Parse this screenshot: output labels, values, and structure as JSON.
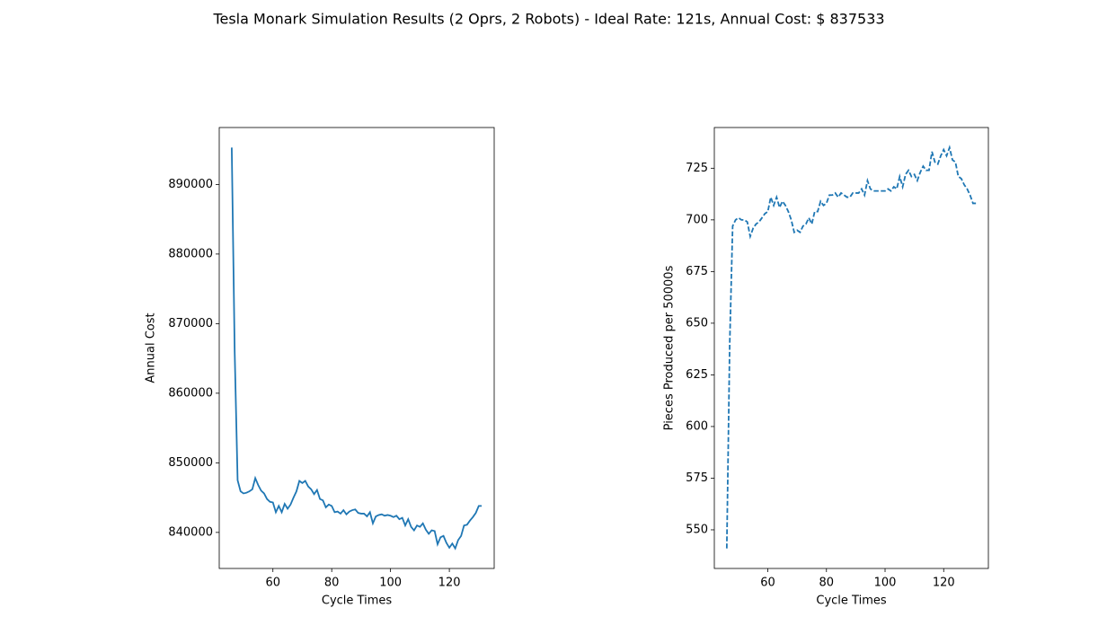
{
  "title": "Tesla Monark Simulation Results (2 Oprs, 2 Robots) - Ideal Rate:  121s, Annual Cost: $ 837533",
  "chart_data": [
    {
      "type": "line",
      "xlabel": "Cycle Times",
      "ylabel": "Annual Cost",
      "xlim": [
        41.75,
        135.25
      ],
      "xticks": [
        60,
        80,
        100,
        120
      ],
      "ylim": [
        834820,
        898180
      ],
      "yticks": [
        840000,
        850000,
        860000,
        870000,
        880000,
        890000
      ],
      "series": [
        {
          "color": "#1f77b4",
          "linestyle": "solid",
          "x": [
            46,
            47,
            48,
            49,
            50,
            51,
            52,
            53,
            54,
            55,
            56,
            57,
            58,
            59,
            60,
            61,
            62,
            63,
            64,
            65,
            66,
            67,
            68,
            69,
            70,
            71,
            72,
            73,
            74,
            75,
            76,
            77,
            78,
            79,
            80,
            81,
            82,
            83,
            84,
            85,
            86,
            87,
            88,
            89,
            90,
            91,
            92,
            93,
            94,
            95,
            96,
            97,
            98,
            99,
            100,
            101,
            102,
            103,
            104,
            105,
            106,
            107,
            108,
            109,
            110,
            111,
            112,
            113,
            114,
            115,
            116,
            117,
            118,
            119,
            120,
            121,
            122,
            123,
            124,
            125,
            126,
            127,
            128,
            129,
            130,
            131
          ],
          "values": [
            895300,
            866000,
            847500,
            845900,
            845600,
            845700,
            845900,
            846200,
            847800,
            846800,
            846000,
            845600,
            844800,
            844400,
            844300,
            842900,
            843800,
            842900,
            844100,
            843400,
            844000,
            845000,
            845900,
            847400,
            847100,
            847400,
            846600,
            846200,
            845500,
            846100,
            844800,
            844600,
            843600,
            844000,
            843800,
            842900,
            843000,
            842700,
            843200,
            842600,
            843000,
            843200,
            843300,
            842800,
            842700,
            842700,
            842300,
            842900,
            841300,
            842300,
            842500,
            842600,
            842400,
            842500,
            842400,
            842200,
            842400,
            841900,
            842100,
            841000,
            841900,
            840800,
            840300,
            841000,
            840800,
            841300,
            840400,
            839800,
            840300,
            840200,
            838300,
            839300,
            839500,
            838500,
            837800,
            838400,
            837700,
            838900,
            839500,
            841000,
            841100,
            841700,
            842200,
            842800,
            843800,
            843800
          ]
        }
      ]
    },
    {
      "type": "line",
      "xlabel": "Cycle Times",
      "ylabel": "Pieces Produced per 50000s",
      "xlim": [
        41.75,
        135.25
      ],
      "xticks": [
        60,
        80,
        100,
        120
      ],
      "ylim": [
        531.3,
        744.7
      ],
      "yticks": [
        550,
        575,
        600,
        625,
        650,
        675,
        700,
        725
      ],
      "series": [
        {
          "color": "#1f77b4",
          "linestyle": "dashed",
          "x": [
            46,
            47,
            48,
            49,
            50,
            51,
            52,
            53,
            54,
            55,
            56,
            57,
            58,
            59,
            60,
            61,
            62,
            63,
            64,
            65,
            66,
            67,
            68,
            69,
            70,
            71,
            72,
            73,
            74,
            75,
            76,
            77,
            78,
            79,
            80,
            81,
            82,
            83,
            84,
            85,
            86,
            87,
            88,
            89,
            90,
            91,
            92,
            93,
            94,
            95,
            96,
            97,
            98,
            99,
            100,
            101,
            102,
            103,
            104,
            105,
            106,
            107,
            108,
            109,
            110,
            111,
            112,
            113,
            114,
            115,
            116,
            117,
            118,
            119,
            120,
            121,
            122,
            123,
            124,
            125,
            126,
            127,
            128,
            129,
            130,
            131
          ],
          "values": [
            541,
            640,
            697,
            700,
            701,
            700,
            700,
            699,
            692,
            696,
            698,
            699,
            701,
            703,
            704,
            711,
            707,
            711,
            706,
            709,
            707,
            704,
            700,
            694,
            695,
            694,
            697,
            698,
            701,
            698,
            704,
            704,
            709,
            707,
            708,
            712,
            712,
            713,
            711,
            713,
            712,
            711,
            711,
            713,
            713,
            713,
            715,
            712,
            719,
            715,
            714,
            714,
            714,
            714,
            714,
            715,
            714,
            716,
            715,
            721,
            716,
            722,
            724,
            721,
            722,
            719,
            723,
            726,
            724,
            724,
            733,
            728,
            727,
            731,
            734,
            731,
            735,
            729,
            728,
            721,
            720,
            717,
            715,
            712,
            708,
            708
          ]
        }
      ]
    }
  ]
}
